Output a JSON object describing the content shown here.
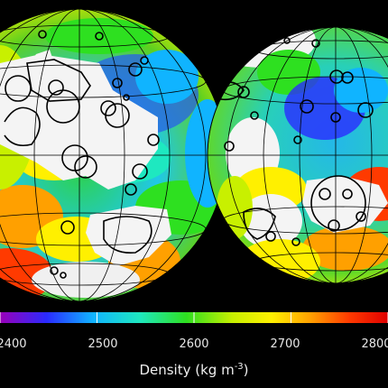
{
  "colorbar": {
    "ticks": [
      {
        "label": "2400",
        "value": 2400
      },
      {
        "label": "2500",
        "value": 2500
      },
      {
        "label": "2600",
        "value": 2600
      },
      {
        "label": "2700",
        "value": 2700
      },
      {
        "label": "2800",
        "value": 2800
      }
    ],
    "range": [
      2400,
      2800
    ],
    "title_text": "Density (kg m",
    "title_exponent": "-3",
    "title_close": ")",
    "colors": [
      "#9a00b8",
      "#2a2aff",
      "#10b4ff",
      "#1ee8c0",
      "#2ee020",
      "#c8f000",
      "#fff000",
      "#ffa000",
      "#ff3a00",
      "#e00000"
    ]
  },
  "map": {
    "hemispheres": [
      "nearside",
      "farside"
    ],
    "highland_fill": "#f4f4f4",
    "outline_color": "#000000",
    "background": "#000000"
  }
}
